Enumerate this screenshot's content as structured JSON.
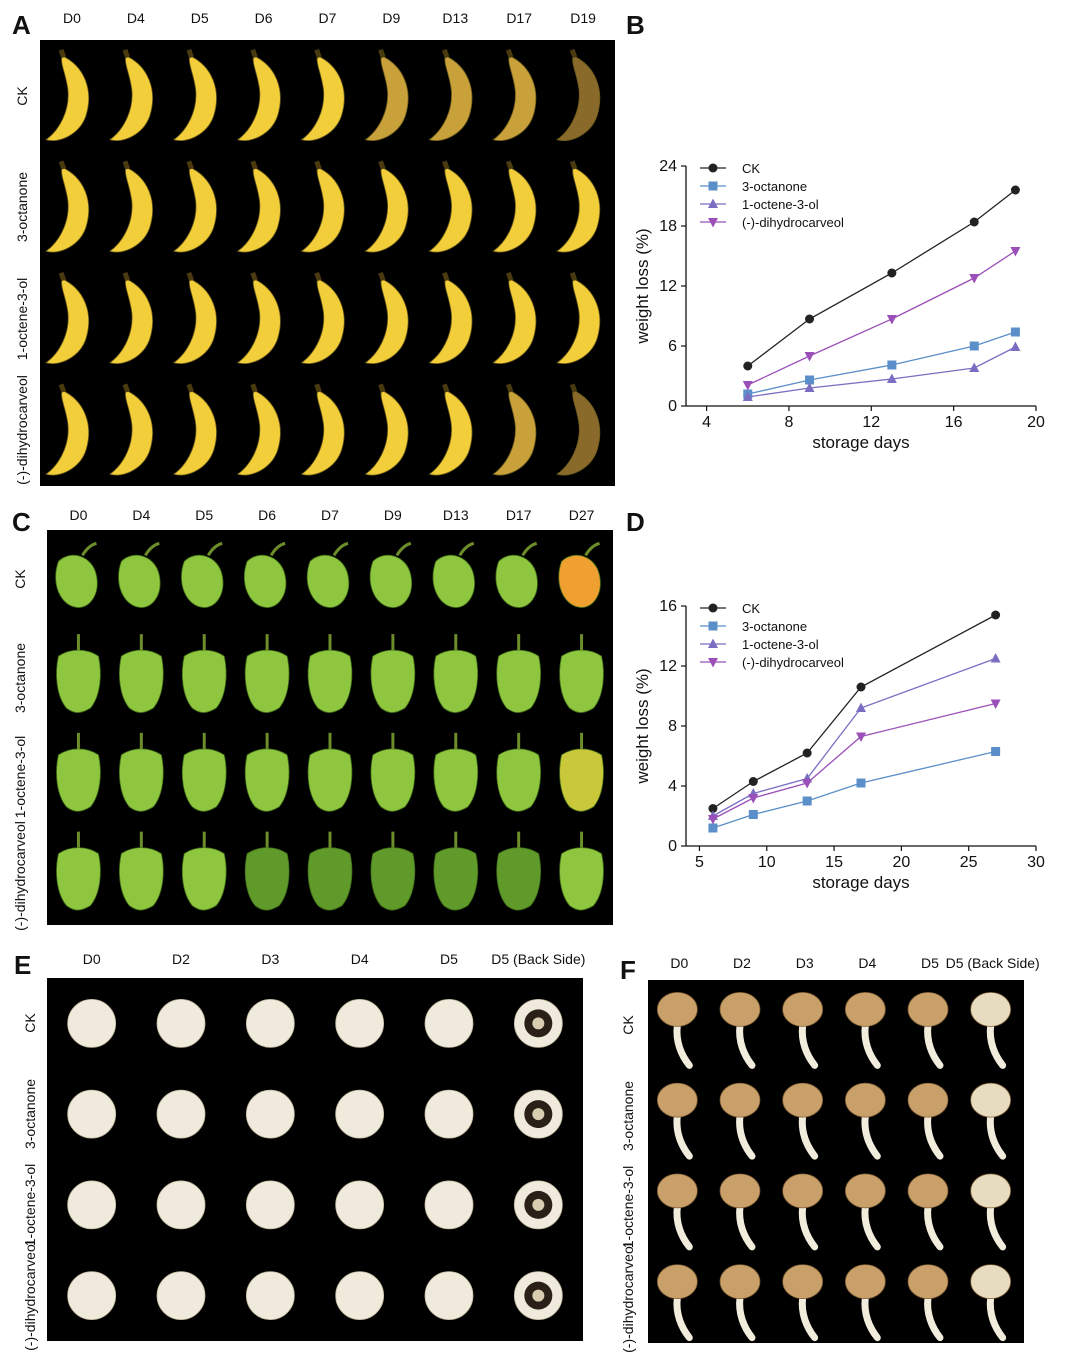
{
  "panels": {
    "A": {
      "letter": "A",
      "columns": [
        "D0",
        "D4",
        "D5",
        "D6",
        "D7",
        "D9",
        "D13",
        "D17",
        "D19"
      ],
      "rows": [
        "CK",
        "3-octanone",
        "1-octene-3-ol",
        "(-)-dihydrocarveol"
      ]
    },
    "B": {
      "letter": "B"
    },
    "C": {
      "letter": "C",
      "columns": [
        "D0",
        "D4",
        "D5",
        "D6",
        "D7",
        "D9",
        "D13",
        "D17",
        "D27"
      ],
      "rows": [
        "CK",
        "3-octanone",
        "1-octene-3-ol",
        "(-)-dihydrocarveol"
      ]
    },
    "D": {
      "letter": "D"
    },
    "E": {
      "letter": "E",
      "columns": [
        "D0",
        "D2",
        "D3",
        "D4",
        "D5",
        "D5 (Back Side)"
      ],
      "rows": [
        "CK",
        "3-octanone",
        "1-octene-3-ol",
        "(-)-dihydrocarveol"
      ]
    },
    "F": {
      "letter": "F",
      "columns": [
        "D0",
        "D2",
        "D3",
        "D4",
        "D5",
        "D5 (Back Side)"
      ],
      "rows": [
        "CK",
        "3-octanone",
        "1-octene-3-ol",
        "(-)-dihydrocarveol"
      ]
    }
  },
  "colors": {
    "banana": "#f2cf3a",
    "banana_ripe": "#c9a13a",
    "pepper": "#8ec63f",
    "pepper_dark": "#5f9a2a",
    "pepper_ripe": "#f0a030",
    "mushroom_cap": "#efeadb",
    "enoki_cap": "#c9a06a",
    "enoki_stem": "#f1ecdc",
    "ck": "#222222",
    "octanone": "#5b8fc9",
    "octene": "#7b6ec2",
    "dihydrocarveol": "#9b4fb8"
  },
  "chart_data": [
    {
      "id": "B",
      "type": "line",
      "xlabel": "storage days",
      "ylabel": "weight loss (%)",
      "xlim": [
        3,
        20
      ],
      "ylim": [
        0,
        24
      ],
      "xticks": [
        4,
        8,
        12,
        16,
        20
      ],
      "yticks": [
        0,
        6,
        12,
        18,
        24
      ],
      "legend": "top-left",
      "x": [
        6,
        9,
        13,
        17,
        19
      ],
      "series": [
        {
          "name": "CK",
          "marker": "circle",
          "values": [
            4.0,
            8.7,
            13.3,
            18.4,
            21.6
          ]
        },
        {
          "name": "3-octanone",
          "marker": "square",
          "values": [
            1.2,
            2.6,
            4.1,
            6.0,
            7.4
          ]
        },
        {
          "name": "1-octene-3-ol",
          "marker": "triangle-up",
          "values": [
            0.9,
            1.8,
            2.7,
            3.8,
            5.9
          ]
        },
        {
          "name": "(-)-dihydrocarveol",
          "marker": "triangle-down",
          "values": [
            2.1,
            5.0,
            8.7,
            12.8,
            15.5
          ]
        }
      ]
    },
    {
      "id": "D",
      "type": "line",
      "xlabel": "storage days",
      "ylabel": "weight loss (%)",
      "xlim": [
        4,
        30
      ],
      "ylim": [
        0,
        16
      ],
      "xticks": [
        5,
        10,
        15,
        20,
        25,
        30
      ],
      "yticks": [
        0,
        4,
        8,
        12,
        16
      ],
      "legend": "top-left",
      "x": [
        6,
        9,
        13,
        17,
        27
      ],
      "series": [
        {
          "name": "CK",
          "marker": "circle",
          "values": [
            2.5,
            4.3,
            6.2,
            10.6,
            15.4
          ]
        },
        {
          "name": "3-octanone",
          "marker": "square",
          "values": [
            1.2,
            2.1,
            3.0,
            4.2,
            6.3
          ]
        },
        {
          "name": "1-octene-3-ol",
          "marker": "triangle-up",
          "values": [
            2.0,
            3.5,
            4.5,
            9.2,
            12.5
          ]
        },
        {
          "name": "(-)-dihydrocarveol",
          "marker": "triangle-down",
          "values": [
            1.8,
            3.2,
            4.2,
            7.3,
            9.5
          ]
        }
      ]
    }
  ]
}
